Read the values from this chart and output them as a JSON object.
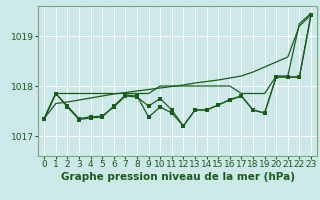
{
  "xlabel": "Graphe pression niveau de la mer (hPa)",
  "bg_color": "#cce8e8",
  "plot_bg_color": "#cce8e8",
  "grid_color": "#b0d8d8",
  "line_color": "#1a5c1a",
  "ylim": [
    1016.6,
    1019.6
  ],
  "xlim": [
    -0.5,
    23.5
  ],
  "yticks": [
    1017,
    1018,
    1019
  ],
  "xticks": [
    0,
    1,
    2,
    3,
    4,
    5,
    6,
    7,
    8,
    9,
    10,
    11,
    12,
    13,
    14,
    15,
    16,
    17,
    18,
    19,
    20,
    21,
    22,
    23
  ],
  "series1_nomarker": [
    1017.35,
    1017.85,
    1017.85,
    1017.85,
    1017.85,
    1017.85,
    1017.85,
    1017.85,
    1017.85,
    1017.85,
    1018.0,
    1018.0,
    1018.0,
    1018.0,
    1018.0,
    1018.0,
    1018.0,
    1017.85,
    1017.85,
    1017.85,
    1018.2,
    1018.2,
    1019.25,
    1019.45
  ],
  "series2_marker": [
    1017.35,
    1017.85,
    1017.6,
    1017.35,
    1017.38,
    1017.4,
    1017.58,
    1017.8,
    1017.78,
    1017.6,
    1017.75,
    1017.52,
    1017.2,
    1017.52,
    1017.52,
    1017.62,
    1017.73,
    1017.8,
    1017.52,
    1017.46,
    1018.18,
    1018.18,
    1018.18,
    1019.42
  ],
  "series3_marker": [
    1017.35,
    1017.85,
    1017.58,
    1017.33,
    1017.36,
    1017.38,
    1017.6,
    1017.82,
    1017.8,
    1017.38,
    1017.58,
    1017.46,
    1017.2,
    1017.52,
    1017.52,
    1017.62,
    1017.72,
    1017.8,
    1017.52,
    1017.46,
    1018.18,
    1018.18,
    1018.18,
    1019.42
  ],
  "series4_trend": [
    1017.35,
    1017.65,
    1017.68,
    1017.72,
    1017.76,
    1017.8,
    1017.84,
    1017.87,
    1017.9,
    1017.93,
    1017.96,
    1017.99,
    1018.02,
    1018.06,
    1018.09,
    1018.12,
    1018.16,
    1018.2,
    1018.28,
    1018.38,
    1018.48,
    1018.58,
    1019.2,
    1019.42
  ],
  "xlabel_fontsize": 7.5,
  "tick_fontsize": 6.5,
  "ylabel_fontsize": 6.5
}
